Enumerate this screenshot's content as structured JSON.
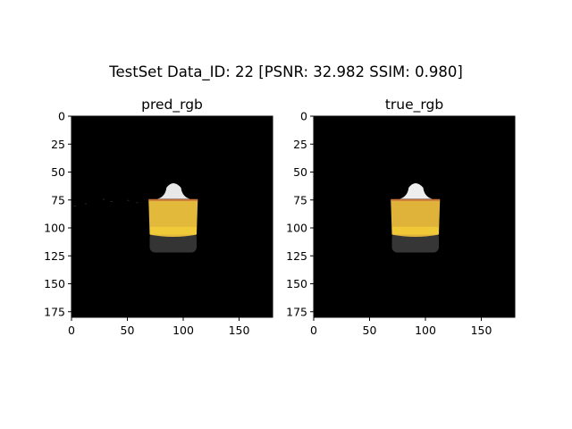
{
  "figure": {
    "suptitle": "TestSet  Data_ID: 22 [PSNR: 32.982 SSIM: 0.980]",
    "background": "#ffffff"
  },
  "chart_data": [
    {
      "type": "image",
      "title": "pred_rgb",
      "xlim": [
        0,
        180
      ],
      "ylim": [
        180,
        0
      ],
      "xticks": [
        0,
        50,
        100,
        150
      ],
      "yticks": [
        0,
        25,
        50,
        75,
        100,
        125,
        150,
        175
      ],
      "image_background": "#000000",
      "object": {
        "cap_color": "#e8e8e8",
        "body_color": "#e2b93a",
        "base_color": "#3a3a3a",
        "rim_color": "#c8743a",
        "has_stray_pixels": true
      }
    },
    {
      "type": "image",
      "title": "true_rgb",
      "xlim": [
        0,
        180
      ],
      "ylim": [
        180,
        0
      ],
      "xticks": [
        0,
        50,
        100,
        150
      ],
      "yticks": [
        0,
        25,
        50,
        75,
        100,
        125,
        150,
        175
      ],
      "image_background": "#000000",
      "object": {
        "cap_color": "#eeeeee",
        "body_color": "#dfb33a",
        "base_color": "#3c3c3c",
        "rim_color": "#c8743a",
        "has_stray_pixels": false
      }
    }
  ]
}
